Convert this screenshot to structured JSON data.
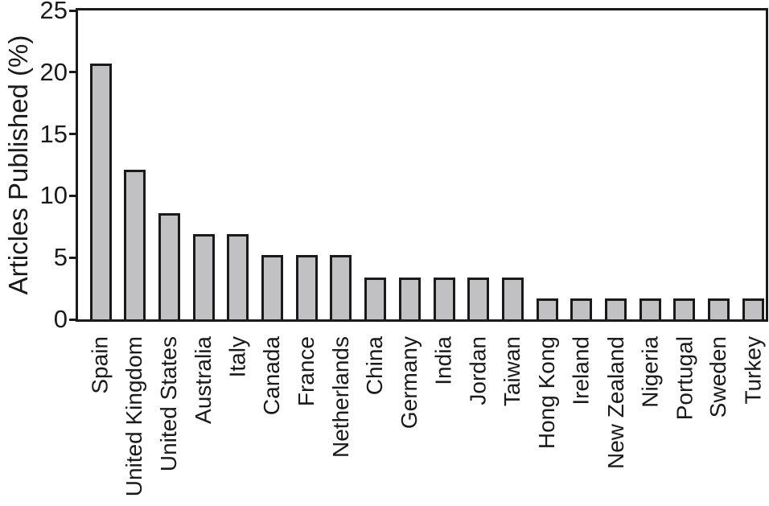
{
  "chart_data": {
    "type": "bar",
    "title": "",
    "ylabel": "Articles Published (%)",
    "xlabel": "",
    "ylim": [
      0,
      25
    ],
    "yticks": [
      0,
      5,
      10,
      15,
      20,
      25
    ],
    "grid": false,
    "legend": "none",
    "categories": [
      "Spain",
      "United Kingdom",
      "United States",
      "Australia",
      "Italy",
      "Canada",
      "France",
      "Netherlands",
      "China",
      "Germany",
      "India",
      "Jordan",
      "Taiwan",
      "Hong Kong",
      "Ireland",
      "New Zealand",
      "Nigeria",
      "Portugal",
      "Sweden",
      "Turkey"
    ],
    "values": [
      20.7,
      12.1,
      8.6,
      6.9,
      6.9,
      5.2,
      5.2,
      5.2,
      3.4,
      3.4,
      3.4,
      3.4,
      3.4,
      1.7,
      1.7,
      1.7,
      1.7,
      1.7,
      1.7,
      1.7
    ],
    "colors": {
      "bar_fill": "#c1c1c3",
      "bar_border": "#1a1a1a",
      "axis": "#1a1a1a",
      "text": "#1a1a1a",
      "background": "#ffffff"
    }
  }
}
